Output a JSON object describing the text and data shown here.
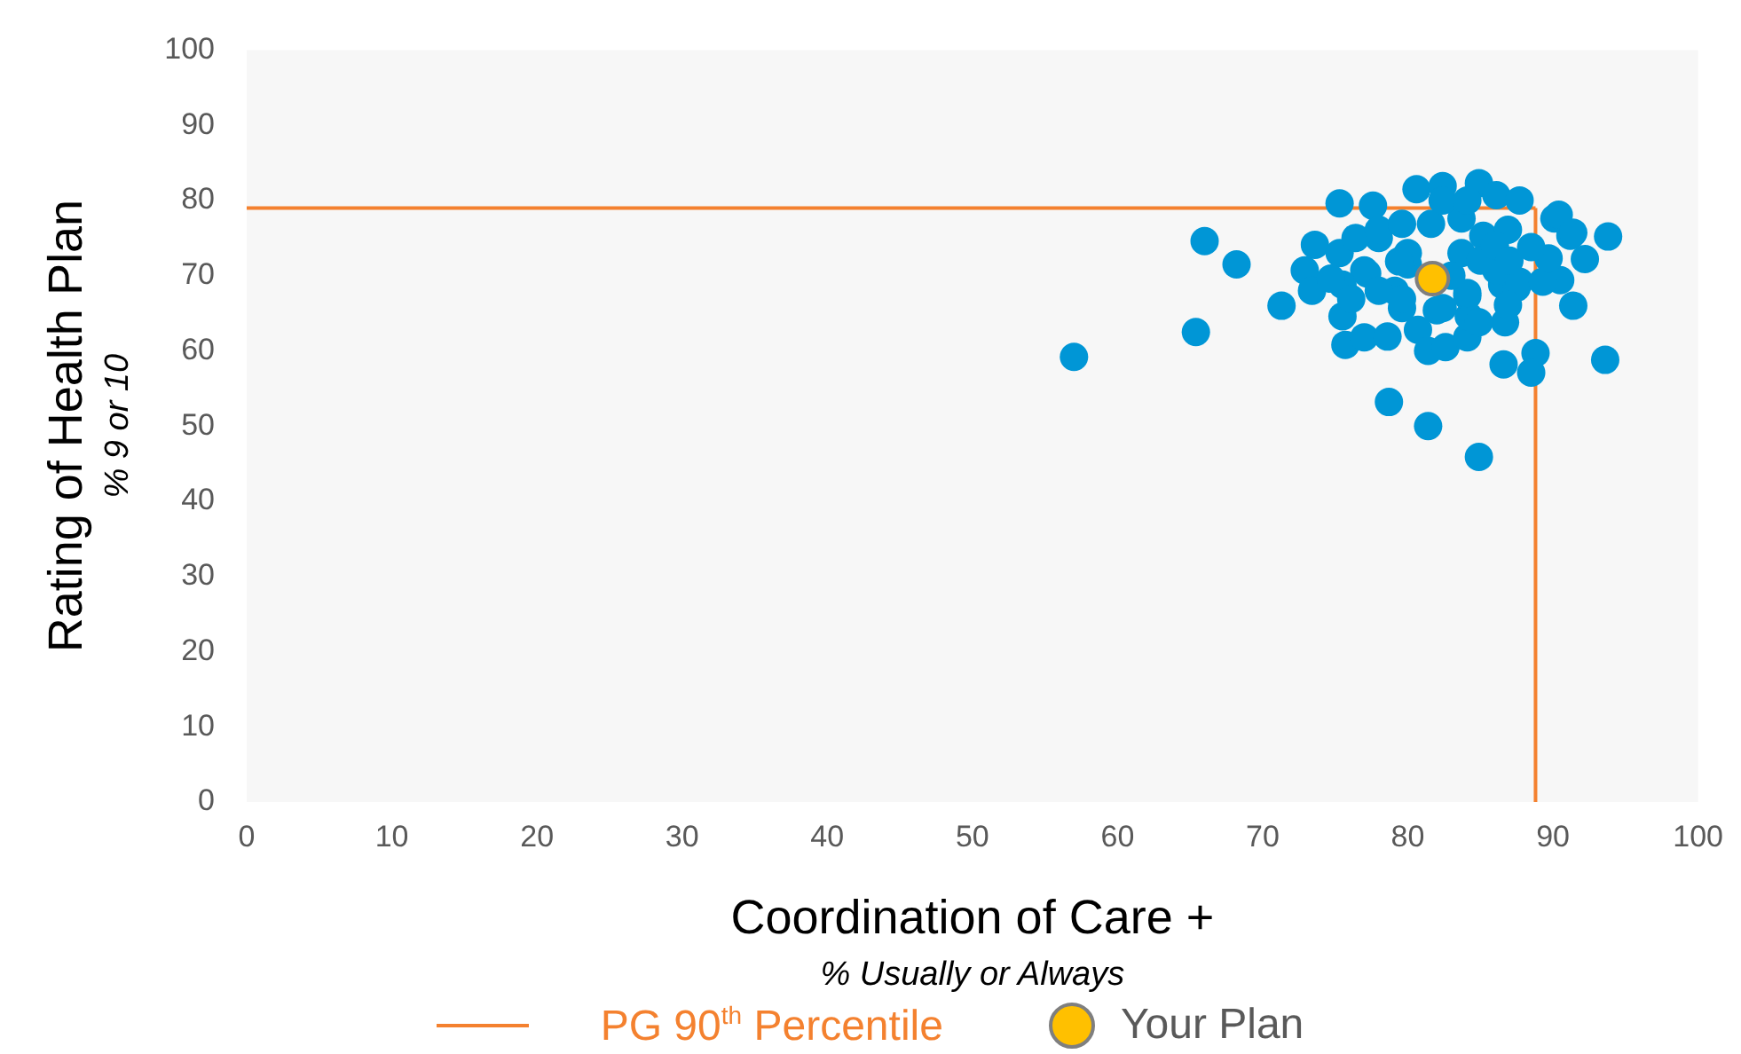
{
  "chart_data": {
    "type": "scatter",
    "xlabel": "Coordination of Care +",
    "ylabel": "Rating of Health Plan",
    "annotations": [
      "% Usually or Always",
      "% 9 or 10"
    ],
    "xlim": [
      0,
      100
    ],
    "xticks": [
      0,
      10,
      20,
      30,
      40,
      50,
      60,
      70,
      80,
      90,
      100
    ],
    "ylim": [
      0,
      100
    ],
    "yticks": [
      0,
      10,
      20,
      30,
      40,
      50,
      60,
      70,
      80,
      90,
      100
    ],
    "grid": false,
    "legend": "bottom",
    "marker": "circle",
    "ref_lines": [
      {
        "axis": "x",
        "value": 88.8,
        "label": "PG 90$^{th}$ Percentile",
        "color": "#f4812f"
      },
      {
        "axis": "y",
        "value": 79,
        "color": "#f4812f"
      }
    ],
    "series": [
      {
        "color": "#0096d6",
        "x": [
          57,
          65.4,
          66,
          68.2,
          71.3,
          73.6,
          72.9,
          73.4,
          75.5,
          75.7,
          77,
          78.6,
          78.7,
          81.4,
          84.9,
          80.7,
          81.4,
          82.6,
          84.1,
          86.7,
          86.6,
          88.8,
          88.5,
          93.6,
          93.8,
          91.4,
          92.2,
          90.5,
          75.3,
          77,
          75.5,
          74.7,
          78,
          80,
          79.1,
          79.6,
          82,
          84.2,
          84.1,
          86.5,
          87.5,
          91.2,
          90.1,
          75.3,
          77.6,
          80.6,
          82.4,
          84.9,
          86.1,
          87.7,
          90.4,
          91.4,
          76.4,
          78,
          79.6,
          81.6,
          83.7,
          80,
          79.4,
          77.2,
          76.1,
          78,
          79.6,
          82.4,
          84.1,
          83.7,
          85.2,
          86.9,
          86.1,
          87.7,
          86.9,
          84.9,
          89.3,
          89.7,
          88.5,
          82.4,
          84.1,
          85,
          86,
          83,
          87
        ],
        "values": [
          59.2,
          62.5,
          74.6,
          71.5,
          66,
          74.1,
          70.7,
          68,
          64.6,
          60.8,
          61.8,
          61.9,
          53.2,
          50,
          45.9,
          62.8,
          60,
          60.5,
          61.8,
          63.8,
          58.2,
          59.7,
          57.1,
          58.8,
          75.2,
          66,
          72.2,
          69.4,
          73,
          70.7,
          68.8,
          69.6,
          75,
          71.5,
          68,
          65.7,
          65.4,
          64.6,
          67.3,
          68.8,
          68.4,
          75.3,
          77.6,
          79.6,
          79.3,
          81.5,
          81.9,
          82.3,
          80.7,
          80,
          78.1,
          75.7,
          75,
          76.1,
          76.9,
          76.9,
          77.6,
          73,
          71.9,
          70.3,
          66.9,
          68,
          66.9,
          65.7,
          67.7,
          73,
          75.3,
          76.1,
          70.7,
          69.2,
          66.1,
          63.8,
          69.2,
          72.3,
          73.8,
          80,
          80,
          72,
          74,
          70,
          72
        ]
      },
      {
        "name": "Your Plan",
        "color": "#ffc000",
        "x": [
          81.7
        ],
        "values": [
          69.6
        ]
      }
    ]
  }
}
